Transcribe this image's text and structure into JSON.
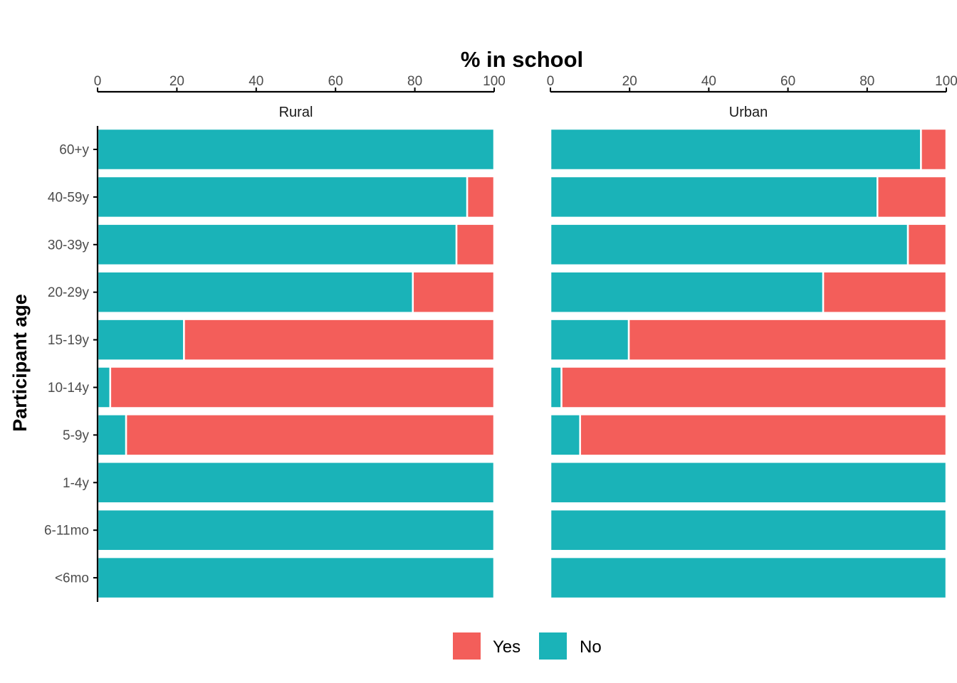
{
  "chart_data": {
    "type": "bar",
    "orientation": "horizontal",
    "stacked": true,
    "xlabel": "% in school",
    "ylabel": "Participant age",
    "xlim": [
      0,
      100
    ],
    "x_ticks": [
      0,
      20,
      40,
      60,
      80,
      100
    ],
    "x_axis_position": "top",
    "categories": [
      "60+y",
      "40-59y",
      "30-39y",
      "20-29y",
      "15-19y",
      "10-14y",
      "5-9y",
      "1-4y",
      "6-11mo",
      "<6mo"
    ],
    "facets": [
      {
        "name": "Rural",
        "series": [
          {
            "name": "No",
            "values": [
              100,
              93.2,
              90.5,
              79.5,
              21.8,
              3.2,
              7.2,
              100,
              100,
              100
            ]
          },
          {
            "name": "Yes",
            "values": [
              0,
              6.8,
              9.5,
              20.5,
              78.2,
              96.8,
              92.8,
              0,
              0,
              0
            ]
          }
        ]
      },
      {
        "name": "Urban",
        "series": [
          {
            "name": "No",
            "values": [
              93.6,
              82.6,
              90.3,
              68.9,
              19.8,
              2.8,
              7.5,
              100,
              100,
              100
            ]
          },
          {
            "name": "Yes",
            "values": [
              6.4,
              17.4,
              9.7,
              31.1,
              80.2,
              97.2,
              92.5,
              0,
              0,
              0
            ]
          }
        ]
      }
    ],
    "legend": {
      "position": "bottom",
      "entries": [
        {
          "name": "Yes",
          "color": "#F35E5A"
        },
        {
          "name": "No",
          "color": "#1AB3B8"
        }
      ]
    },
    "grid": false
  }
}
